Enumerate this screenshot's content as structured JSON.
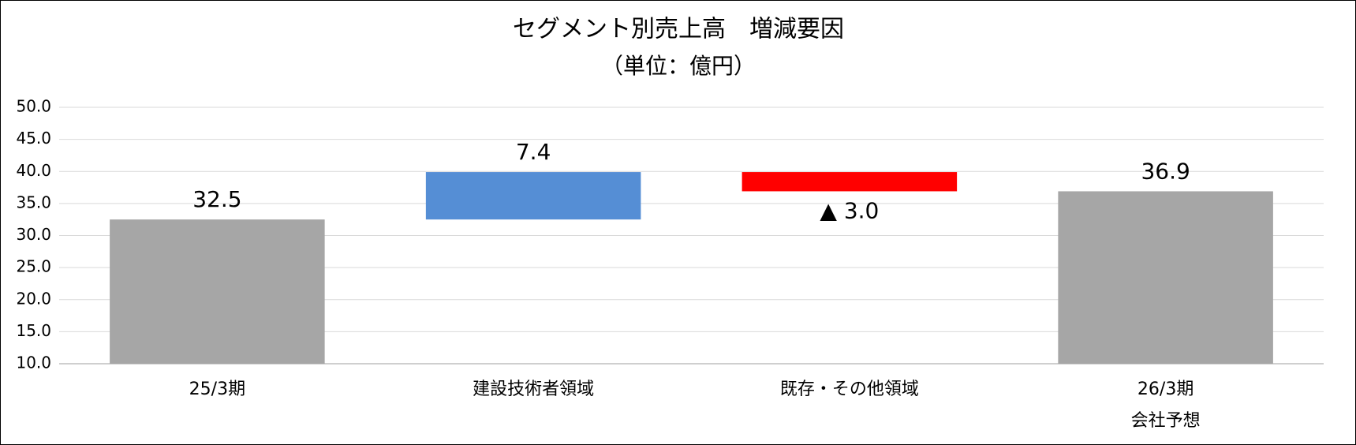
{
  "chart_data": {
    "type": "waterfall",
    "title": "セグメント別売上高　増減要因",
    "subtitle": "（単位：億円）",
    "categories": [
      "25/3期",
      "建設技術者領域",
      "既存・その他領域",
      "26/3期\n会社予想"
    ],
    "values": [
      32.5,
      7.4,
      -3.0,
      36.9
    ],
    "value_labels": [
      "32.5",
      "7.4",
      "▲ 3.0",
      "36.9"
    ],
    "measures": [
      "absolute",
      "relative",
      "relative",
      "total"
    ],
    "colors": {
      "total": "#a6a6a6",
      "increase": "#558ed5",
      "decrease": "#ff0000"
    },
    "ylim": [
      10,
      50
    ],
    "yticks": [
      {
        "value": 10,
        "label": "10.0"
      },
      {
        "value": 15,
        "label": "15.0"
      },
      {
        "value": 20,
        "label": "20.0"
      },
      {
        "value": 25,
        "label": "25.0"
      },
      {
        "value": 30,
        "label": "30.0"
      },
      {
        "value": 35,
        "label": "35.0"
      },
      {
        "value": 40,
        "label": "40.0"
      },
      {
        "value": 45,
        "label": "45.0"
      },
      {
        "value": 50,
        "label": "50.0"
      }
    ],
    "grid": true
  }
}
